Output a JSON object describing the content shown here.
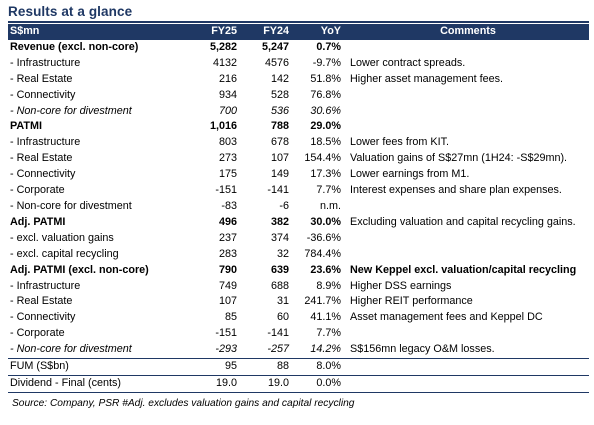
{
  "title": "Results at a glance",
  "headers": {
    "label": "S$mn",
    "fy25": "FY25",
    "fy24": "FY24",
    "yoy": "YoY",
    "comments": "Comments"
  },
  "rows": [
    {
      "label": "Revenue  (excl. non-core)",
      "fy25": "5,282",
      "fy24": "5,247",
      "yoy": "0.7%",
      "comment": "",
      "style": "bold"
    },
    {
      "label": "- Infrastructure",
      "fy25": "4132",
      "fy24": "4576",
      "yoy": "-9.7%",
      "comment": "Lower contract spreads.",
      "style": ""
    },
    {
      "label": "- Real Estate",
      "fy25": "216",
      "fy24": "142",
      "yoy": "51.8%",
      "comment": "Higher asset management fees.",
      "style": ""
    },
    {
      "label": "- Connectivity",
      "fy25": "934",
      "fy24": "528",
      "yoy": "76.8%",
      "comment": "",
      "style": ""
    },
    {
      "label": "- Non-core for divestment",
      "fy25": "700",
      "fy24": "536",
      "yoy": "30.6%",
      "comment": "",
      "style": "ital"
    },
    {
      "label": "PATMI",
      "fy25": "1,016",
      "fy24": "788",
      "yoy": "29.0%",
      "comment": "",
      "style": "bold"
    },
    {
      "label": "- Infrastructure",
      "fy25": "803",
      "fy24": "678",
      "yoy": "18.5%",
      "comment": "Lower fees from KIT.",
      "style": ""
    },
    {
      "label": "- Real Estate",
      "fy25": "273",
      "fy24": "107",
      "yoy": "154.4%",
      "comment": "Valuation gains of S$27mn (1H24: -S$29mn).",
      "style": ""
    },
    {
      "label": "- Connectivity",
      "fy25": "175",
      "fy24": "149",
      "yoy": "17.3%",
      "comment": "Lower earnings from M1.",
      "style": ""
    },
    {
      "label": "- Corporate",
      "fy25": "-151",
      "fy24": "-141",
      "yoy": "7.7%",
      "comment": "Interest expenses and share plan expenses.",
      "style": ""
    },
    {
      "label": "- Non-core for divestment",
      "fy25": "-83",
      "fy24": "-6",
      "yoy": "n.m.",
      "comment": "",
      "style": ""
    },
    {
      "label": "Adj. PATMI",
      "fy25": "496",
      "fy24": "382",
      "yoy": "30.0%",
      "comment": "Excluding valuation and capital recycling gains.",
      "style": "bold",
      "comment_normal": true
    },
    {
      "label": "- excl. valuation gains",
      "fy25": "237",
      "fy24": "374",
      "yoy": "-36.6%",
      "comment": "",
      "style": ""
    },
    {
      "label": "- excl. capital recycling",
      "fy25": "283",
      "fy24": "32",
      "yoy": "784.4%",
      "comment": "",
      "style": ""
    },
    {
      "label": "Adj. PATMI (excl. non-core)",
      "fy25": "790",
      "fy24": "639",
      "yoy": "23.6%",
      "comment": "New Keppel excl. valuation/capital recycling",
      "style": "bold"
    },
    {
      "label": "- Infrastructure",
      "fy25": "749",
      "fy24": "688",
      "yoy": "8.9%",
      "comment": "Higher DSS earnings",
      "style": ""
    },
    {
      "label": "- Real Estate",
      "fy25": "107",
      "fy24": "31",
      "yoy": "241.7%",
      "comment": "Higher REIT performance",
      "style": ""
    },
    {
      "label": "- Connectivity",
      "fy25": "85",
      "fy24": "60",
      "yoy": "41.1%",
      "comment": "Asset management fees and Keppel DC",
      "style": ""
    },
    {
      "label": "- Corporate",
      "fy25": "-151",
      "fy24": "-141",
      "yoy": "7.7%",
      "comment": "",
      "style": ""
    },
    {
      "label": "- Non-core for divestment",
      "fy25": "-293",
      "fy24": "-257",
      "yoy": "14.2%",
      "comment": "S$156mn legacy O&M losses.",
      "style": "ital"
    },
    {
      "label": "FUM (S$bn)",
      "fy25": "95",
      "fy24": "88",
      "yoy": "8.0%",
      "comment": "",
      "style": "sep"
    },
    {
      "label": "Dividend - Final (cents)",
      "fy25": "19.0",
      "fy24": "19.0",
      "yoy": "0.0%",
      "comment": "",
      "style": "sep"
    }
  ],
  "source": "Source: Company, PSR  #Adj. excludes valuation gains and capital recycling",
  "colors": {
    "header_bg": "#1f3864",
    "header_text": "#ffffff",
    "title": "#1f3864"
  }
}
